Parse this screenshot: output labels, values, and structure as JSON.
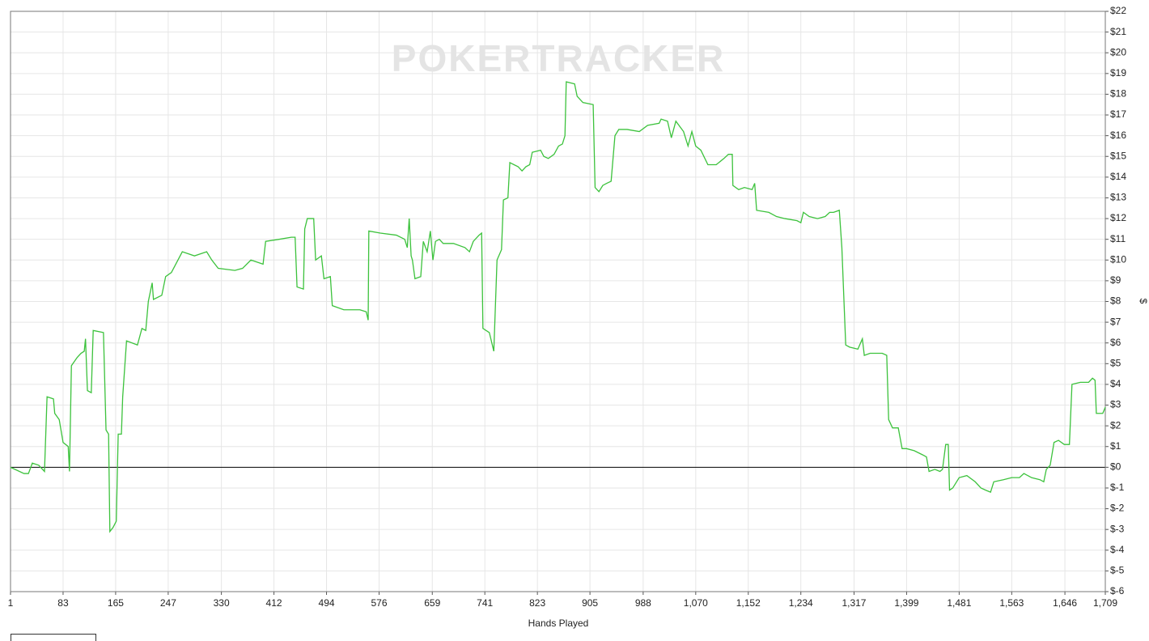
{
  "chart_data": {
    "type": "line",
    "watermark": "POKERTRACKER",
    "x_label": "Hands Played",
    "y_label": "$",
    "grid": true,
    "xlim": [
      1,
      1709
    ],
    "ylim": [
      -6,
      22
    ],
    "xticks": [
      1,
      83,
      165,
      247,
      330,
      412,
      494,
      576,
      659,
      741,
      823,
      905,
      988,
      {
        "value": 1070,
        "label": "1,070"
      },
      {
        "value": 1152,
        "label": "1,152"
      },
      {
        "value": 1234,
        "label": "1,234"
      },
      {
        "value": 1317,
        "label": "1,317"
      },
      {
        "value": 1399,
        "label": "1,399"
      },
      {
        "value": 1481,
        "label": "1,481"
      },
      {
        "value": 1563,
        "label": "1,563"
      },
      {
        "value": 1646,
        "label": "1,646"
      },
      {
        "value": 1709,
        "label": "1,709"
      }
    ],
    "yticks": [
      {
        "value": 22,
        "label": "$22"
      },
      {
        "value": 21,
        "label": "$21"
      },
      {
        "value": 20,
        "label": "$20"
      },
      {
        "value": 19,
        "label": "$19"
      },
      {
        "value": 18,
        "label": "$18"
      },
      {
        "value": 17,
        "label": "$17"
      },
      {
        "value": 16,
        "label": "$16"
      },
      {
        "value": 15,
        "label": "$15"
      },
      {
        "value": 14,
        "label": "$14"
      },
      {
        "value": 13,
        "label": "$13"
      },
      {
        "value": 12,
        "label": "$12"
      },
      {
        "value": 11,
        "label": "$11"
      },
      {
        "value": 10,
        "label": "$10"
      },
      {
        "value": 9,
        "label": "$9"
      },
      {
        "value": 8,
        "label": "$8"
      },
      {
        "value": 7,
        "label": "$7"
      },
      {
        "value": 6,
        "label": "$6"
      },
      {
        "value": 5,
        "label": "$5"
      },
      {
        "value": 4,
        "label": "$4"
      },
      {
        "value": 3,
        "label": "$3"
      },
      {
        "value": 2,
        "label": "$2"
      },
      {
        "value": 1,
        "label": "$1"
      },
      {
        "value": 0,
        "label": "$0"
      },
      {
        "value": -1,
        "label": "$-1"
      },
      {
        "value": -2,
        "label": "$-2"
      },
      {
        "value": -3,
        "label": "$-3"
      },
      {
        "value": -4,
        "label": "$-4"
      },
      {
        "value": -5,
        "label": "$-5"
      },
      {
        "value": -6,
        "label": "$-6"
      }
    ],
    "color": "#3cc23c",
    "x": [
      1,
      22,
      29,
      35,
      45,
      54,
      58,
      68,
      70,
      77,
      83,
      91,
      93,
      96,
      105,
      111,
      116,
      118,
      121,
      127,
      130,
      146,
      150,
      154,
      156,
      161,
      166,
      169,
      174,
      176,
      182,
      199,
      206,
      212,
      216,
      222,
      224,
      237,
      243,
      252,
      269,
      288,
      307,
      315,
      325,
      351,
      363,
      376,
      395,
      399,
      420,
      439,
      445,
      448,
      458,
      460,
      464,
      474,
      477,
      486,
      490,
      500,
      503,
      521,
      546,
      556,
      559,
      560,
      578,
      603,
      616,
      620,
      623,
      626,
      628,
      632,
      641,
      645,
      651,
      656,
      660,
      664,
      670,
      676,
      692,
      710,
      717,
      723,
      732,
      736,
      738,
      748,
      755,
      760,
      767,
      770,
      777,
      780,
      793,
      799,
      805,
      811,
      815,
      828,
      833,
      840,
      849,
      856,
      862,
      866,
      868,
      881,
      885,
      894,
      910,
      913,
      919,
      925,
      931,
      938,
      944,
      950,
      963,
      982,
      995,
      1013,
      1016,
      1026,
      1032,
      1039,
      1051,
      1058,
      1064,
      1070,
      1078,
      1089,
      1102,
      1114,
      1121,
      1127,
      1128,
      1137,
      1146,
      1158,
      1162,
      1165,
      1184,
      1196,
      1209,
      1228,
      1234,
      1238,
      1247,
      1260,
      1272,
      1279,
      1285,
      1294,
      1298,
      1304,
      1310,
      1323,
      1330,
      1333,
      1342,
      1361,
      1368,
      1371,
      1377,
      1386,
      1392,
      1399,
      1411,
      1424,
      1430,
      1434,
      1443,
      1451,
      1455,
      1460,
      1464,
      1466,
      1471,
      1481,
      1493,
      1506,
      1515,
      1522,
      1530,
      1535,
      1550,
      1563,
      1575,
      1582,
      1594,
      1607,
      1613,
      1617,
      1623,
      1629,
      1636,
      1645,
      1653,
      1657,
      1670,
      1683,
      1689,
      1693,
      1695,
      1705,
      1709
    ],
    "values": [
      0,
      -0.3,
      -0.3,
      0.2,
      0.1,
      -0.2,
      3.4,
      3.3,
      2.6,
      2.3,
      1.2,
      1.0,
      -0.2,
      4.9,
      5.3,
      5.5,
      5.6,
      6.2,
      3.7,
      3.6,
      6.6,
      6.5,
      1.8,
      1.6,
      -3.1,
      -2.9,
      -2.6,
      1.6,
      1.6,
      3.4,
      6.1,
      5.9,
      6.7,
      6.6,
      8.0,
      8.9,
      8.1,
      8.3,
      9.2,
      9.4,
      10.4,
      10.2,
      10.4,
      10.0,
      9.6,
      9.5,
      9.6,
      10.0,
      9.8,
      10.9,
      11.0,
      11.1,
      11.1,
      8.7,
      8.6,
      11.5,
      12.0,
      12.0,
      10.0,
      10.2,
      9.1,
      9.2,
      7.8,
      7.6,
      7.6,
      7.5,
      7.1,
      11.4,
      11.3,
      11.2,
      11.0,
      10.6,
      12.0,
      10.2,
      10.0,
      9.1,
      9.2,
      10.9,
      10.4,
      11.4,
      10.0,
      10.9,
      11.0,
      10.8,
      10.8,
      10.6,
      10.4,
      10.9,
      11.2,
      11.3,
      6.7,
      6.5,
      5.6,
      10.0,
      10.5,
      12.9,
      13.0,
      14.7,
      14.5,
      14.3,
      14.5,
      14.6,
      15.2,
      15.3,
      15.0,
      14.9,
      15.1,
      15.5,
      15.6,
      16.0,
      18.6,
      18.5,
      17.9,
      17.6,
      17.5,
      13.5,
      13.3,
      13.6,
      13.7,
      13.8,
      16.0,
      16.3,
      16.3,
      16.2,
      16.5,
      16.6,
      16.8,
      16.7,
      15.9,
      16.7,
      16.2,
      15.5,
      16.2,
      15.5,
      15.3,
      14.6,
      14.6,
      14.9,
      15.1,
      15.1,
      13.6,
      13.4,
      13.5,
      13.4,
      13.7,
      12.4,
      12.3,
      12.1,
      12.0,
      11.9,
      11.8,
      12.3,
      12.1,
      12.0,
      12.1,
      12.3,
      12.3,
      12.4,
      10.6,
      5.9,
      5.8,
      5.7,
      6.2,
      5.4,
      5.5,
      5.5,
      5.4,
      2.3,
      1.9,
      1.9,
      0.9,
      0.9,
      0.8,
      0.6,
      0.5,
      -0.2,
      -0.1,
      -0.2,
      -0.1,
      1.1,
      1.1,
      -1.1,
      -1.0,
      -0.5,
      -0.4,
      -0.7,
      -1.0,
      -1.1,
      -1.2,
      -0.7,
      -0.6,
      -0.5,
      -0.5,
      -0.3,
      -0.5,
      -0.6,
      -0.7,
      -0.1,
      0.1,
      1.2,
      1.3,
      1.1,
      1.1,
      4.0,
      4.1,
      4.1,
      4.3,
      4.2,
      2.6,
      2.6,
      2.9
    ]
  }
}
